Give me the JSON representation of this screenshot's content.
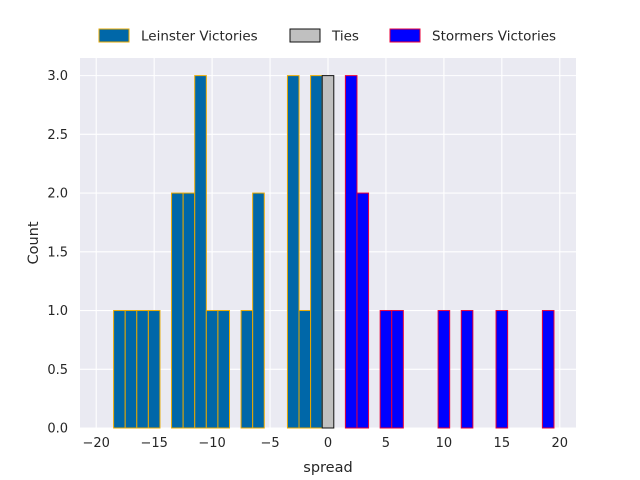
{
  "chart_data": {
    "type": "bar",
    "subtype": "histogram",
    "xlabel": "spread",
    "ylabel": "Count",
    "xlim": [
      -21.4,
      21.4
    ],
    "ylim": [
      0,
      3.15
    ],
    "xticks": [
      -20,
      -15,
      -10,
      -5,
      0,
      5,
      10,
      15,
      20
    ],
    "xtick_labels": [
      "−20",
      "−15",
      "−10",
      "−5",
      "0",
      "5",
      "10",
      "15",
      "20"
    ],
    "yticks": [
      0.0,
      0.5,
      1.0,
      1.5,
      2.0,
      2.5,
      3.0
    ],
    "ytick_labels": [
      "0.0",
      "0.5",
      "1.0",
      "1.5",
      "2.0",
      "2.5",
      "3.0"
    ],
    "bin_width": 1,
    "grid": true,
    "background": "#eaeaf2",
    "legend_position": "top-center, above plot",
    "series": [
      {
        "name": "Leinster Victories",
        "fill": "#0067a8",
        "edge": "#e8a800",
        "bins": [
          {
            "x": -18,
            "count": 1
          },
          {
            "x": -17,
            "count": 1
          },
          {
            "x": -16,
            "count": 1
          },
          {
            "x": -15,
            "count": 1
          },
          {
            "x": -13,
            "count": 2
          },
          {
            "x": -12,
            "count": 2
          },
          {
            "x": -11,
            "count": 3
          },
          {
            "x": -10,
            "count": 1
          },
          {
            "x": -9,
            "count": 1
          },
          {
            "x": -7,
            "count": 1
          },
          {
            "x": -6,
            "count": 2
          },
          {
            "x": -3,
            "count": 3
          },
          {
            "x": -2,
            "count": 1
          },
          {
            "x": -1,
            "count": 3
          }
        ]
      },
      {
        "name": "Ties",
        "fill": "#c0c0c0",
        "edge": "#111111",
        "bins": [
          {
            "x": 0,
            "count": 3
          }
        ]
      },
      {
        "name": "Stormers Victories",
        "fill": "#0000ff",
        "edge": "#e8003a",
        "bins": [
          {
            "x": 2,
            "count": 3
          },
          {
            "x": 3,
            "count": 2
          },
          {
            "x": 5,
            "count": 1
          },
          {
            "x": 6,
            "count": 1
          },
          {
            "x": 10,
            "count": 1
          },
          {
            "x": 12,
            "count": 1
          },
          {
            "x": 15,
            "count": 1
          },
          {
            "x": 19,
            "count": 1
          }
        ]
      }
    ]
  }
}
